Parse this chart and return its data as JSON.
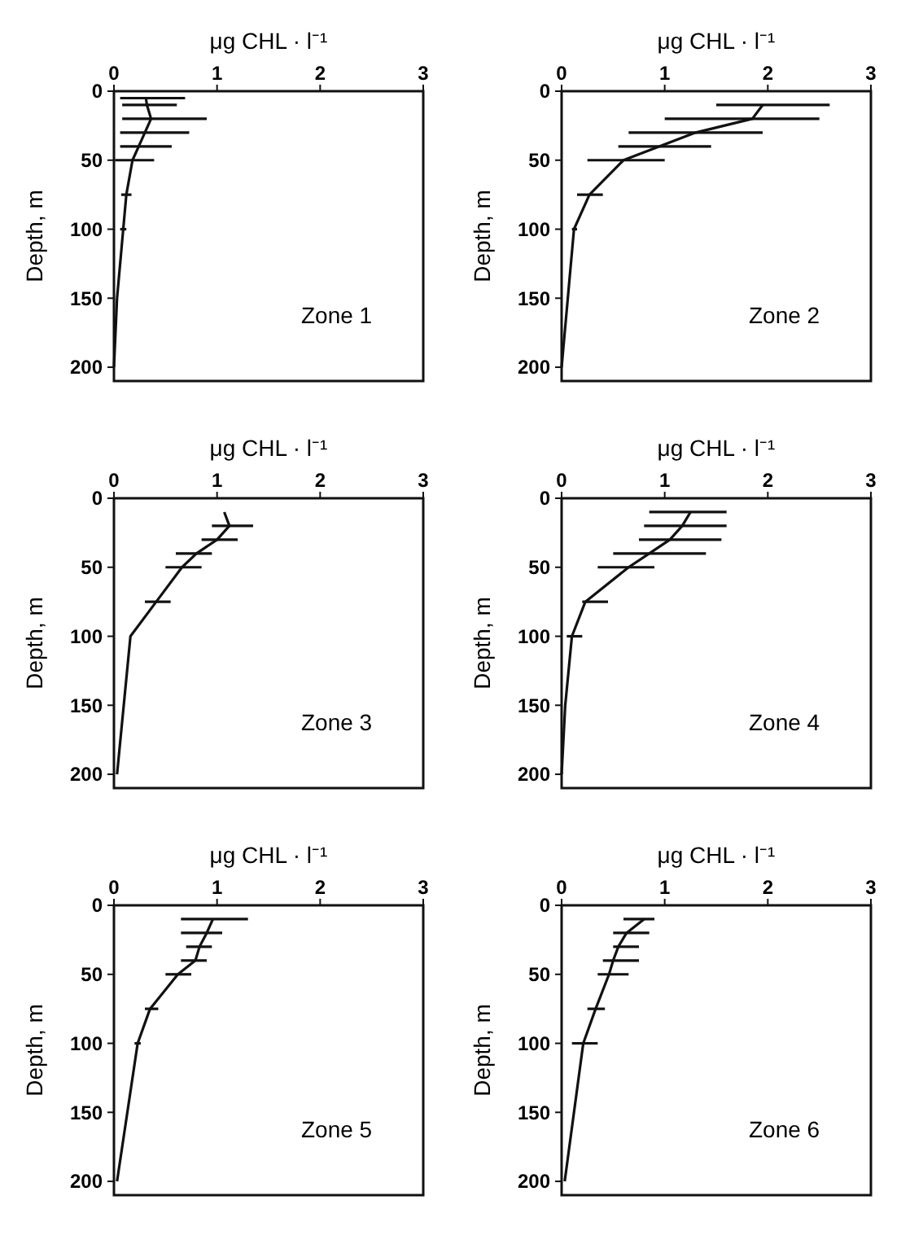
{
  "chart_data": [
    {
      "type": "line",
      "xlabel": "μg CHL · l⁻¹",
      "ylabel": "Depth, m",
      "annotations": [
        "Zone 1"
      ],
      "xlim": [
        0,
        3
      ],
      "xticks": [
        0,
        1,
        2,
        3
      ],
      "ylim": [
        210,
        0
      ],
      "yticks": [
        0,
        50,
        100,
        150,
        200
      ],
      "marker": "none",
      "grid": false,
      "series": [
        {
          "color": "#111111",
          "x": [
            0.31,
            0.32,
            0.36,
            0.3,
            0.24,
            0.18,
            0.12,
            0.09,
            0.03,
            0.0
          ],
          "values": [
            5,
            10,
            20,
            30,
            40,
            50,
            75,
            100,
            150,
            200
          ],
          "xerrors": [
            [
              0.06,
              0.69
            ],
            [
              0.08,
              0.61
            ],
            [
              0.08,
              0.9
            ],
            [
              0.06,
              0.73
            ],
            [
              0.06,
              0.56
            ],
            [
              0.01,
              0.39
            ],
            [
              0.07,
              0.17
            ],
            [
              0.06,
              0.12
            ],
            null,
            null
          ]
        }
      ]
    },
    {
      "type": "line",
      "xlabel": "μg CHL · l⁻¹",
      "ylabel": "Depth, m",
      "annotations": [
        "Zone 2"
      ],
      "xlim": [
        0,
        3
      ],
      "xticks": [
        0,
        1,
        2,
        3
      ],
      "ylim": [
        210,
        0
      ],
      "yticks": [
        0,
        50,
        100,
        150,
        200
      ],
      "marker": "none",
      "grid": false,
      "series": [
        {
          "color": "#111111",
          "x": [
            1.95,
            1.85,
            1.3,
            0.95,
            0.6,
            0.27,
            0.12,
            0.06,
            0.0
          ],
          "values": [
            10,
            20,
            30,
            40,
            50,
            75,
            100,
            150,
            200
          ],
          "xerrors": [
            [
              1.5,
              2.6
            ],
            [
              1.0,
              2.5
            ],
            [
              0.65,
              1.95
            ],
            [
              0.55,
              1.45
            ],
            [
              0.25,
              1.0
            ],
            [
              0.15,
              0.4
            ],
            [
              0.1,
              0.15
            ],
            null,
            null
          ]
        }
      ]
    },
    {
      "type": "line",
      "xlabel": "μg CHL · l⁻¹",
      "ylabel": "Depth, m",
      "annotations": [
        "Zone 3"
      ],
      "xlim": [
        0,
        3
      ],
      "xticks": [
        0,
        1,
        2,
        3
      ],
      "ylim": [
        210,
        0
      ],
      "yticks": [
        0,
        50,
        100,
        150,
        200
      ],
      "marker": "none",
      "grid": false,
      "series": [
        {
          "color": "#111111",
          "x": [
            1.07,
            1.12,
            1.0,
            0.8,
            0.66,
            0.41,
            0.16,
            0.03
          ],
          "values": [
            10,
            20,
            30,
            40,
            50,
            75,
            100,
            200
          ],
          "xerrors": [
            null,
            [
              0.95,
              1.35
            ],
            [
              0.85,
              1.2
            ],
            [
              0.6,
              0.95
            ],
            [
              0.5,
              0.85
            ],
            [
              0.3,
              0.55
            ],
            null,
            null
          ]
        }
      ]
    },
    {
      "type": "line",
      "xlabel": "μg CHL · l⁻¹",
      "ylabel": "Depth, m",
      "annotations": [
        "Zone 4"
      ],
      "xlim": [
        0,
        3
      ],
      "xticks": [
        0,
        1,
        2,
        3
      ],
      "ylim": [
        210,
        0
      ],
      "yticks": [
        0,
        50,
        100,
        150,
        200
      ],
      "marker": "none",
      "grid": false,
      "series": [
        {
          "color": "#111111",
          "x": [
            1.25,
            1.17,
            1.05,
            0.85,
            0.65,
            0.23,
            0.1,
            0.035,
            0.0
          ],
          "values": [
            10,
            20,
            30,
            40,
            50,
            75,
            100,
            150,
            200
          ],
          "xerrors": [
            [
              0.85,
              1.6
            ],
            [
              0.8,
              1.6
            ],
            [
              0.75,
              1.55
            ],
            [
              0.5,
              1.4
            ],
            [
              0.35,
              0.9
            ],
            [
              0.2,
              0.45
            ],
            [
              0.05,
              0.2
            ],
            null,
            null
          ]
        }
      ]
    },
    {
      "type": "line",
      "xlabel": "μg CHL · l⁻¹",
      "ylabel": "Depth, m",
      "annotations": [
        "Zone 5"
      ],
      "xlim": [
        0,
        3
      ],
      "xticks": [
        0,
        1,
        2,
        3
      ],
      "ylim": [
        210,
        0
      ],
      "yticks": [
        0,
        50,
        100,
        150,
        200
      ],
      "marker": "none",
      "grid": false,
      "series": [
        {
          "color": "#111111",
          "x": [
            0.96,
            0.9,
            0.83,
            0.79,
            0.62,
            0.35,
            0.23,
            0.03
          ],
          "values": [
            10,
            20,
            30,
            40,
            50,
            75,
            100,
            200
          ],
          "xerrors": [
            [
              0.65,
              1.3
            ],
            [
              0.65,
              1.05
            ],
            [
              0.7,
              0.95
            ],
            [
              0.65,
              0.9
            ],
            [
              0.5,
              0.75
            ],
            [
              0.3,
              0.43
            ],
            [
              0.2,
              0.26
            ],
            null
          ]
        }
      ]
    },
    {
      "type": "line",
      "xlabel": "μg CHL · l⁻¹",
      "ylabel": "Depth, m",
      "annotations": [
        "Zone 6"
      ],
      "xlim": [
        0,
        3
      ],
      "xticks": [
        0,
        1,
        2,
        3
      ],
      "ylim": [
        210,
        0
      ],
      "yticks": [
        0,
        50,
        100,
        150,
        200
      ],
      "marker": "none",
      "grid": false,
      "series": [
        {
          "color": "#111111",
          "x": [
            0.8,
            0.63,
            0.55,
            0.5,
            0.46,
            0.33,
            0.21,
            0.03
          ],
          "values": [
            10,
            20,
            30,
            40,
            50,
            75,
            100,
            200
          ],
          "xerrors": [
            [
              0.6,
              0.9
            ],
            [
              0.5,
              0.85
            ],
            [
              0.5,
              0.75
            ],
            [
              0.4,
              0.75
            ],
            [
              0.35,
              0.65
            ],
            [
              0.25,
              0.42
            ],
            [
              0.1,
              0.35
            ],
            null
          ]
        }
      ]
    }
  ]
}
